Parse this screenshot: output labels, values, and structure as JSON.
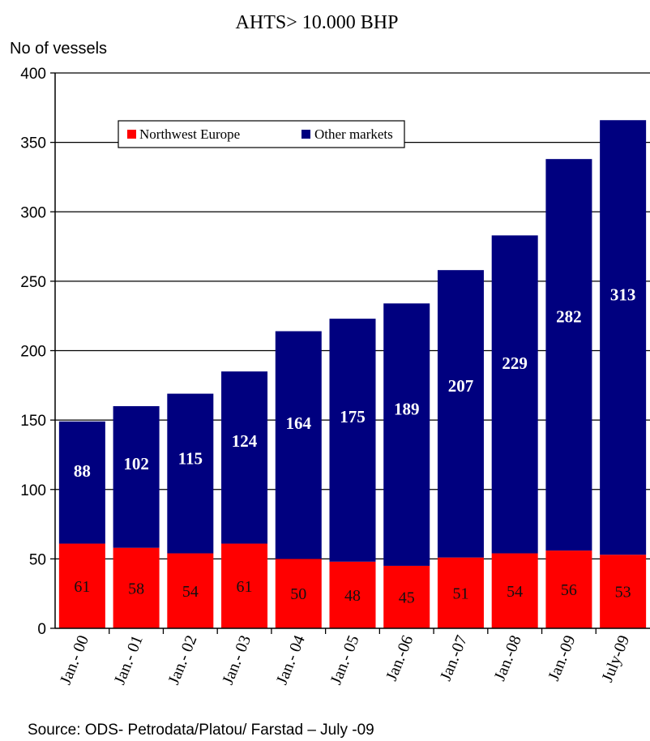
{
  "chart_data": {
    "type": "bar",
    "stacked": true,
    "title": "AHTS> 10.000 BHP",
    "ylabel": "No of vessels",
    "xlabel": "",
    "ylim": [
      0,
      400
    ],
    "yticks": [
      0,
      50,
      100,
      150,
      200,
      250,
      300,
      350,
      400
    ],
    "grid": true,
    "legend_position": "top-left",
    "categories": [
      "Jan.- 00",
      "Jan.- 01",
      "Jan.- 02",
      "Jan.- 03",
      "Jan.- 04",
      "Jan.- 05",
      "Jan.-06",
      "Jan.-07",
      "Jan.-08",
      "Jan.-09",
      "July-09"
    ],
    "series": [
      {
        "name": "Northwest Europe",
        "color": "#ff0000",
        "values": [
          61,
          58,
          54,
          61,
          50,
          48,
          45,
          51,
          54,
          56,
          53
        ]
      },
      {
        "name": "Other markets",
        "color": "#00007f",
        "values": [
          88,
          102,
          115,
          124,
          164,
          175,
          189,
          207,
          229,
          282,
          313
        ]
      }
    ],
    "source": "Source: ODS- Petrodata/Platou/ Farstad – July -09"
  }
}
